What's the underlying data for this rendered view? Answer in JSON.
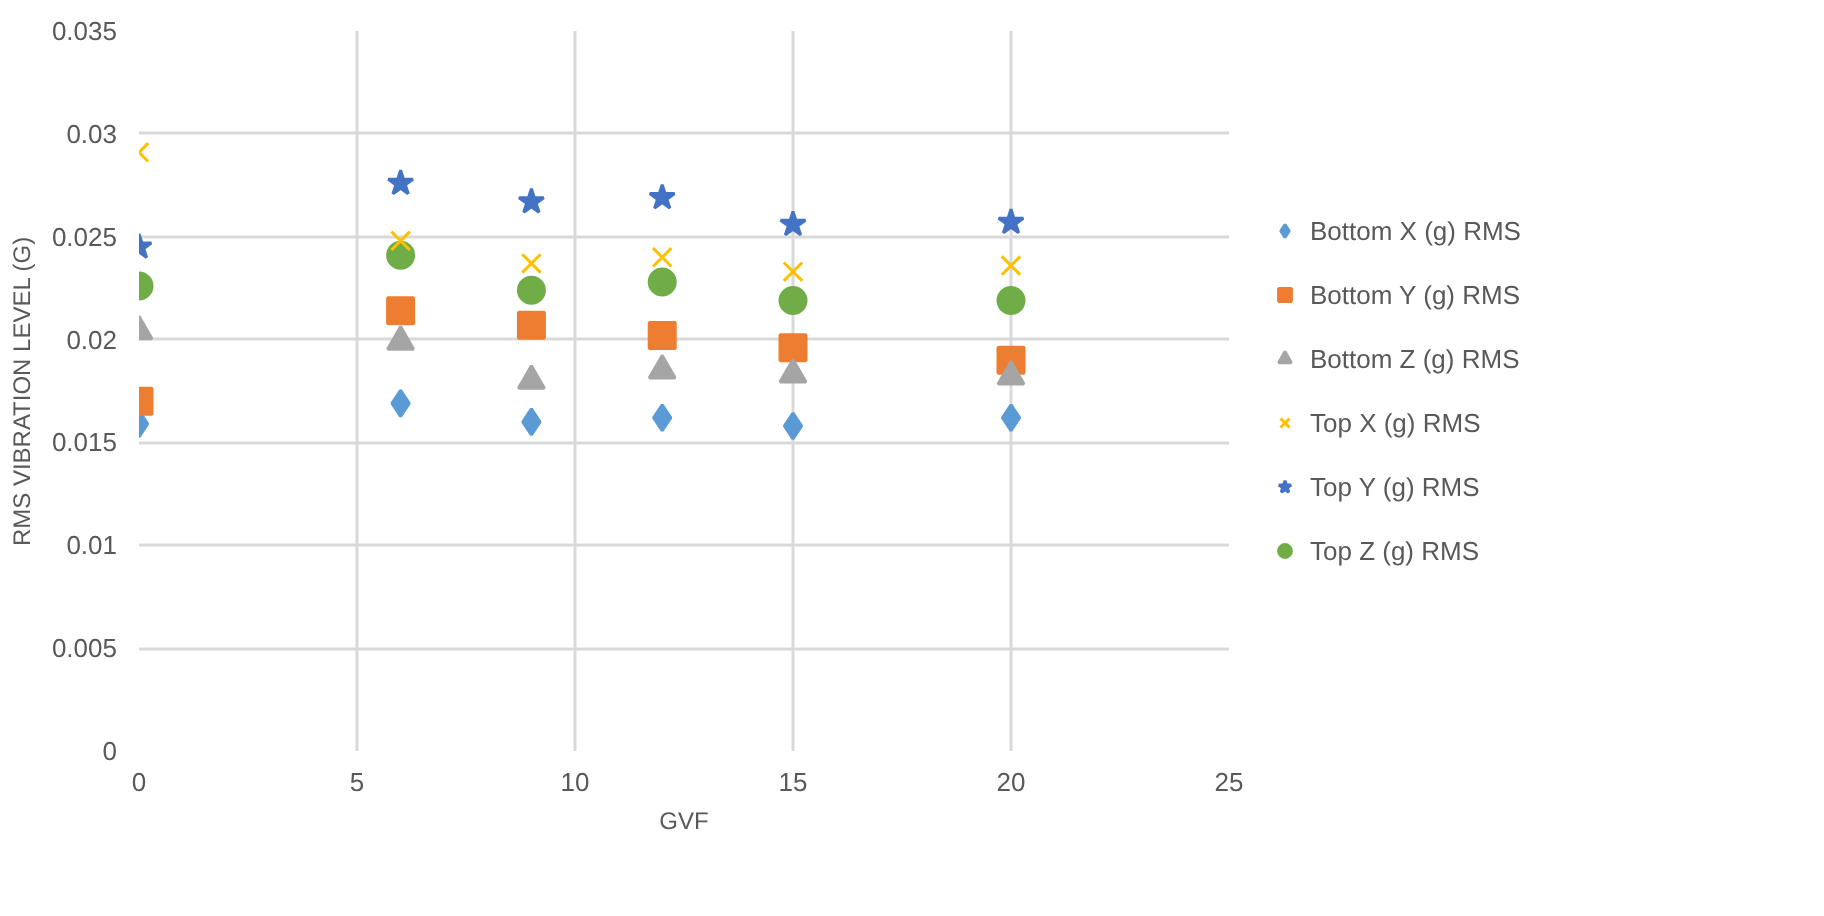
{
  "chart_data": {
    "type": "scatter",
    "xlabel": "GVF",
    "ylabel": "RMS VIBRATION LEVEL (G)",
    "x": [
      0,
      6,
      9,
      12,
      15,
      20
    ],
    "series": [
      {
        "name": "Bottom X (g) RMS",
        "color": "#5b9bd5",
        "marker": "diamond",
        "values": [
          0.0159,
          0.0169,
          0.016,
          0.0162,
          0.0158,
          0.0162
        ]
      },
      {
        "name": "Bottom Y (g) RMS",
        "color": "#ed7d31",
        "marker": "square",
        "values": [
          0.017,
          0.0214,
          0.0207,
          0.0202,
          0.0196,
          0.019
        ]
      },
      {
        "name": "Bottom Z (g) RMS",
        "color": "#a5a5a5",
        "marker": "triangle",
        "values": [
          0.0204,
          0.0199,
          0.018,
          0.0185,
          0.0183,
          0.0182
        ]
      },
      {
        "name": "Top X (g) RMS",
        "color": "#ffc000",
        "marker": "cross",
        "values": [
          0.0291,
          0.0248,
          0.0237,
          0.024,
          0.0233,
          0.0236
        ]
      },
      {
        "name": "Top Y (g) RMS",
        "color": "#4472c4",
        "marker": "star",
        "values": [
          0.0245,
          0.0276,
          0.0267,
          0.0269,
          0.0256,
          0.0257
        ]
      },
      {
        "name": "Top Z (g) RMS",
        "color": "#70ad47",
        "marker": "circle",
        "values": [
          0.0226,
          0.0241,
          0.0224,
          0.0228,
          0.0219,
          0.0219
        ]
      }
    ],
    "xlim": [
      0,
      25
    ],
    "xticks": [
      0,
      5,
      10,
      15,
      20,
      25
    ],
    "ylim": [
      0,
      0.035
    ],
    "yticks": [
      0,
      0.005,
      0.01,
      0.015,
      0.02,
      0.025,
      0.03,
      0.035
    ],
    "grid": true,
    "legend": "right"
  }
}
